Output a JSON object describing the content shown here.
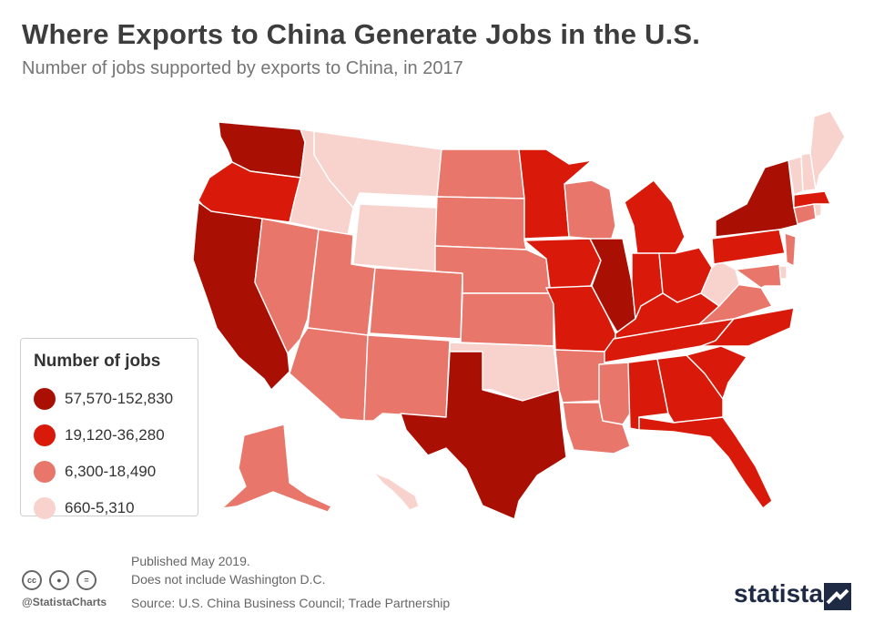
{
  "header": {
    "title": "Where Exports to China Generate Jobs in the U.S.",
    "subtitle": "Number of jobs supported by exports to China, in 2017"
  },
  "legend": {
    "title": "Number of jobs",
    "items": [
      {
        "label": "57,570-152,830",
        "color": "#a90f02"
      },
      {
        "label": "19,120-36,280",
        "color": "#d91a0a"
      },
      {
        "label": "6,300-18,490",
        "color": "#e8766a"
      },
      {
        "label": "660-5,310",
        "color": "#f8d2cd"
      }
    ]
  },
  "map_data": {
    "type": "choropleth",
    "region": "United States",
    "states": {
      "WA": 4,
      "CA": 4,
      "TX": 4,
      "IL": 4,
      "NY": 4,
      "OR": 3,
      "MN": 3,
      "IA": 3,
      "MO": 3,
      "MI": 3,
      "IN": 3,
      "OH": 3,
      "KY": 3,
      "TN": 3,
      "PA": 3,
      "NC": 3,
      "SC": 3,
      "GA": 3,
      "AL": 3,
      "FL": 3,
      "MA": 3,
      "NV": 2,
      "UT": 2,
      "AZ": 2,
      "CO": 2,
      "NM": 2,
      "ND": 2,
      "SD": 2,
      "NE": 2,
      "KS": 2,
      "WI": 2,
      "AR": 2,
      "LA": 2,
      "MS": 2,
      "VA": 2,
      "NJ": 2,
      "CT": 2,
      "MD": 2,
      "AK": 2,
      "MT": 1,
      "ID": 1,
      "WY": 1,
      "OK": 1,
      "WV": 1,
      "ME": 1,
      "VT": 1,
      "NH": 1,
      "RI": 1,
      "DE": 1,
      "HI": 1
    }
  },
  "footer": {
    "published": "Published May 2019.",
    "note": "Does not include Washington D.C.",
    "source": "Source: U.S. China Business Council; Trade Partnership",
    "handle": "@StatistaCharts",
    "brand": "statista"
  }
}
